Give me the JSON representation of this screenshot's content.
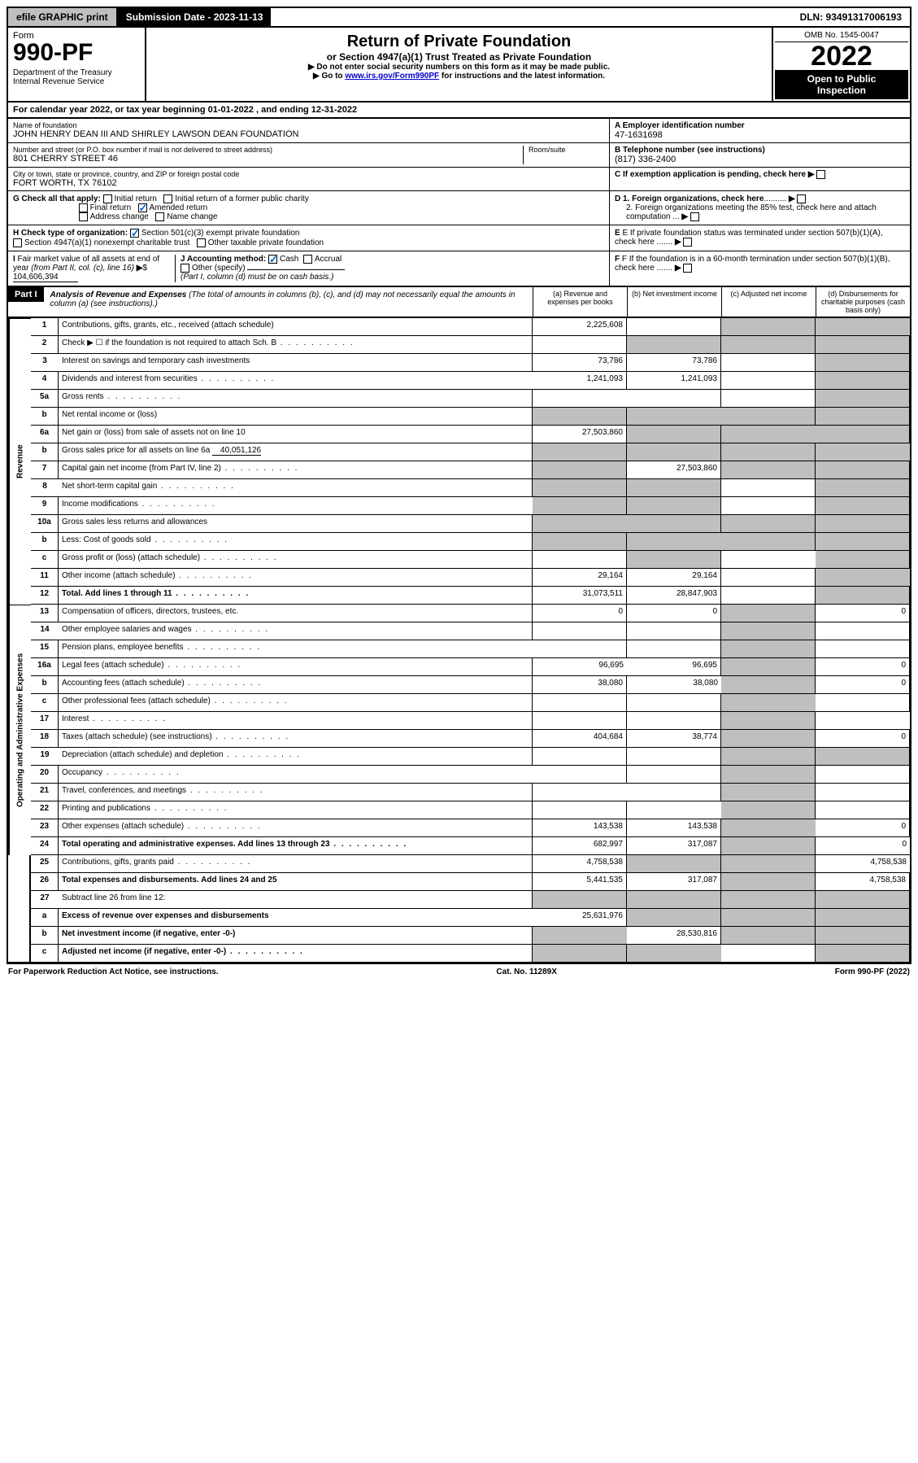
{
  "top": {
    "efile": "efile GRAPHIC print",
    "submission": "Submission Date - 2023-11-13",
    "dln": "DLN: 93491317006193"
  },
  "header": {
    "form_label": "Form",
    "form_number": "990-PF",
    "dept": "Department of the Treasury\nInternal Revenue Service",
    "title": "Return of Private Foundation",
    "subtitle": "or Section 4947(a)(1) Trust Treated as Private Foundation",
    "instr1": "▶ Do not enter social security numbers on this form as it may be made public.",
    "instr2": "▶ Go to www.irs.gov/Form990PF for instructions and the latest information.",
    "instr2_link": "www.irs.gov/Form990PF",
    "omb": "OMB No. 1545-0047",
    "year": "2022",
    "open": "Open to Public\nInspection"
  },
  "cal_year": "For calendar year 2022, or tax year beginning 01-01-2022            , and ending 12-31-2022",
  "info": {
    "name_label": "Name of foundation",
    "name": "JOHN HENRY DEAN III AND SHIRLEY LAWSON DEAN FOUNDATION",
    "ein_label": "A Employer identification number",
    "ein": "47-1631698",
    "addr_label": "Number and street (or P.O. box number if mail is not delivered to street address)",
    "addr": "801 CHERRY STREET 46",
    "room_label": "Room/suite",
    "phone_label": "B Telephone number (see instructions)",
    "phone": "(817) 336-2400",
    "city_label": "City or town, state or province, country, and ZIP or foreign postal code",
    "city": "FORT WORTH, TX  76102",
    "c_label": "C If exemption application is pending, check here"
  },
  "checks": {
    "g_label": "G Check all that apply:",
    "initial": "Initial return",
    "initial_former": "Initial return of a former public charity",
    "final": "Final return",
    "amended": "Amended return",
    "addr_change": "Address change",
    "name_change": "Name change",
    "d1": "D 1. Foreign organizations, check here",
    "d2": "2. Foreign organizations meeting the 85% test, check here and attach computation ...",
    "h_label": "H Check type of organization:",
    "h1": "Section 501(c)(3) exempt private foundation",
    "h2": "Section 4947(a)(1) nonexempt charitable trust",
    "h3": "Other taxable private foundation",
    "e_label": "E If private foundation status was terminated under section 507(b)(1)(A), check here .......",
    "i_label": "I Fair market value of all assets at end of year (from Part II, col. (c), line 16) ▶$",
    "i_val": "104,606,394",
    "j_label": "J Accounting method:",
    "j_cash": "Cash",
    "j_accrual": "Accrual",
    "j_other": "Other (specify)",
    "j_note": "(Part I, column (d) must be on cash basis.)",
    "f_label": "F If the foundation is in a 60-month termination under section 507(b)(1)(B), check here ......."
  },
  "part1": {
    "label": "Part I",
    "title": "Analysis of Revenue and Expenses",
    "note": "(The total of amounts in columns (b), (c), and (d) may not necessarily equal the amounts in column (a) (see instructions).)",
    "col_a": "(a) Revenue and expenses per books",
    "col_b": "(b) Net investment income",
    "col_c": "(c) Adjusted net income",
    "col_d": "(d) Disbursements for charitable purposes (cash basis only)"
  },
  "sections": {
    "revenue": "Revenue",
    "expenses": "Operating and Administrative Expenses"
  },
  "rows": [
    {
      "n": "1",
      "t": "Contributions, gifts, grants, etc., received (attach schedule)",
      "a": "2,225,608",
      "b": "",
      "c": "g",
      "d": "g"
    },
    {
      "n": "2",
      "t": "Check ▶ ☐ if the foundation is not required to attach Sch. B",
      "a": "",
      "b": "g",
      "c": "g",
      "d": "g",
      "dots": true
    },
    {
      "n": "3",
      "t": "Interest on savings and temporary cash investments",
      "a": "73,786",
      "b": "73,786",
      "c": "",
      "d": "g"
    },
    {
      "n": "4",
      "t": "Dividends and interest from securities",
      "a": "1,241,093",
      "b": "1,241,093",
      "c": "",
      "d": "g",
      "dots": true
    },
    {
      "n": "5a",
      "t": "Gross rents",
      "a": "",
      "b": "",
      "c": "",
      "d": "g",
      "dots": true
    },
    {
      "n": "b",
      "t": "Net rental income or (loss)",
      "a": "g",
      "b": "g",
      "c": "g",
      "d": "g",
      "inset": true
    },
    {
      "n": "6a",
      "t": "Net gain or (loss) from sale of assets not on line 10",
      "a": "27,503,860",
      "b": "g",
      "c": "g",
      "d": "g"
    },
    {
      "n": "b",
      "t": "Gross sales price for all assets on line 6a",
      "a": "g",
      "b": "g",
      "c": "g",
      "d": "g",
      "inline_val": "40,051,126"
    },
    {
      "n": "7",
      "t": "Capital gain net income (from Part IV, line 2)",
      "a": "g",
      "b": "27,503,860",
      "c": "g",
      "d": "g",
      "dots": true
    },
    {
      "n": "8",
      "t": "Net short-term capital gain",
      "a": "g",
      "b": "g",
      "c": "",
      "d": "g",
      "dots": true
    },
    {
      "n": "9",
      "t": "Income modifications",
      "a": "g",
      "b": "g",
      "c": "",
      "d": "g",
      "dots": true
    },
    {
      "n": "10a",
      "t": "Gross sales less returns and allowances",
      "a": "g",
      "b": "g",
      "c": "g",
      "d": "g",
      "inset": true
    },
    {
      "n": "b",
      "t": "Less: Cost of goods sold",
      "a": "g",
      "b": "g",
      "c": "g",
      "d": "g",
      "inset": true,
      "dots": true
    },
    {
      "n": "c",
      "t": "Gross profit or (loss) (attach schedule)",
      "a": "",
      "b": "g",
      "c": "",
      "d": "g",
      "dots": true
    },
    {
      "n": "11",
      "t": "Other income (attach schedule)",
      "a": "29,164",
      "b": "29,164",
      "c": "",
      "d": "g",
      "dots": true
    },
    {
      "n": "12",
      "t": "Total. Add lines 1 through 11",
      "a": "31,073,511",
      "b": "28,847,903",
      "c": "",
      "d": "g",
      "bold": true,
      "dots": true
    },
    {
      "n": "13",
      "t": "Compensation of officers, directors, trustees, etc.",
      "a": "0",
      "b": "0",
      "c": "g",
      "d": "0",
      "section": "exp"
    },
    {
      "n": "14",
      "t": "Other employee salaries and wages",
      "a": "",
      "b": "",
      "c": "g",
      "d": "",
      "dots": true
    },
    {
      "n": "15",
      "t": "Pension plans, employee benefits",
      "a": "",
      "b": "",
      "c": "g",
      "d": "",
      "dots": true
    },
    {
      "n": "16a",
      "t": "Legal fees (attach schedule)",
      "a": "96,695",
      "b": "96,695",
      "c": "g",
      "d": "0",
      "dots": true
    },
    {
      "n": "b",
      "t": "Accounting fees (attach schedule)",
      "a": "38,080",
      "b": "38,080",
      "c": "g",
      "d": "0",
      "dots": true
    },
    {
      "n": "c",
      "t": "Other professional fees (attach schedule)",
      "a": "",
      "b": "",
      "c": "g",
      "d": "",
      "dots": true
    },
    {
      "n": "17",
      "t": "Interest",
      "a": "",
      "b": "",
      "c": "g",
      "d": "",
      "dots": true
    },
    {
      "n": "18",
      "t": "Taxes (attach schedule) (see instructions)",
      "a": "404,684",
      "b": "38,774",
      "c": "g",
      "d": "0",
      "dots": true
    },
    {
      "n": "19",
      "t": "Depreciation (attach schedule) and depletion",
      "a": "",
      "b": "",
      "c": "g",
      "d": "g",
      "dots": true
    },
    {
      "n": "20",
      "t": "Occupancy",
      "a": "",
      "b": "",
      "c": "g",
      "d": "",
      "dots": true
    },
    {
      "n": "21",
      "t": "Travel, conferences, and meetings",
      "a": "",
      "b": "",
      "c": "g",
      "d": "",
      "dots": true
    },
    {
      "n": "22",
      "t": "Printing and publications",
      "a": "",
      "b": "",
      "c": "g",
      "d": "",
      "dots": true
    },
    {
      "n": "23",
      "t": "Other expenses (attach schedule)",
      "a": "143,538",
      "b": "143,538",
      "c": "g",
      "d": "0",
      "dots": true
    },
    {
      "n": "24",
      "t": "Total operating and administrative expenses. Add lines 13 through 23",
      "a": "682,997",
      "b": "317,087",
      "c": "g",
      "d": "0",
      "bold": true,
      "dots": true
    },
    {
      "n": "25",
      "t": "Contributions, gifts, grants paid",
      "a": "4,758,538",
      "b": "g",
      "c": "g",
      "d": "4,758,538",
      "dots": true
    },
    {
      "n": "26",
      "t": "Total expenses and disbursements. Add lines 24 and 25",
      "a": "5,441,535",
      "b": "317,087",
      "c": "g",
      "d": "4,758,538",
      "bold": true
    },
    {
      "n": "27",
      "t": "Subtract line 26 from line 12:",
      "a": "g",
      "b": "g",
      "c": "g",
      "d": "g",
      "noside": true
    },
    {
      "n": "a",
      "t": "Excess of revenue over expenses and disbursements",
      "a": "25,631,976",
      "b": "g",
      "c": "g",
      "d": "g",
      "bold": true,
      "noside": true
    },
    {
      "n": "b",
      "t": "Net investment income (if negative, enter -0-)",
      "a": "g",
      "b": "28,530,816",
      "c": "g",
      "d": "g",
      "bold": true,
      "noside": true
    },
    {
      "n": "c",
      "t": "Adjusted net income (if negative, enter -0-)",
      "a": "g",
      "b": "g",
      "c": "",
      "d": "g",
      "bold": true,
      "noside": true,
      "dots": true
    }
  ],
  "footer": {
    "left": "For Paperwork Reduction Act Notice, see instructions.",
    "center": "Cat. No. 11289X",
    "right": "Form 990-PF (2022)"
  },
  "colors": {
    "grey": "#bfbfbf",
    "black": "#000000",
    "link": "#0000cc",
    "check": "#0066cc"
  }
}
